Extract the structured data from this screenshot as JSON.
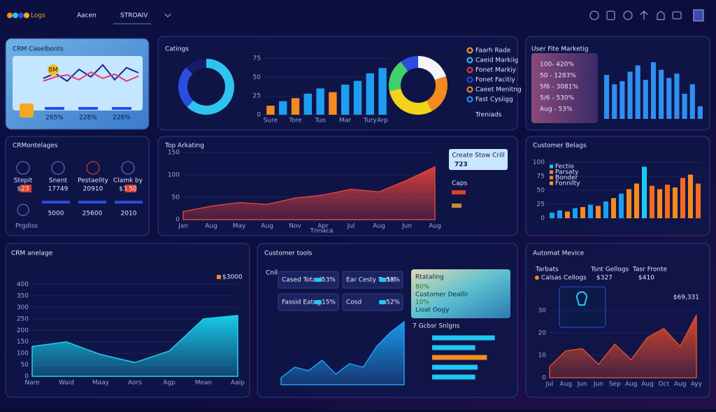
{
  "header": {
    "logo": "Logs",
    "nav": [
      "Aacen",
      "STROAIV"
    ]
  },
  "panels": {
    "crm_caselbonts": {
      "title": "CRM Caselbonts",
      "badge": "8M",
      "stats": [
        "265%",
        "228%",
        "226%"
      ],
      "chart": {
        "type": "line",
        "ylim": [
          0,
          100
        ],
        "series": [
          {
            "color": "#1a2a8a",
            "values": [
              40,
              58,
              30,
              72,
              45,
              88,
              35,
              78,
              60
            ]
          },
          {
            "color": "#e83a7a",
            "values": [
              30,
              45,
              52,
              35,
              62,
              40,
              55,
              30,
              48
            ]
          }
        ]
      }
    },
    "catings": {
      "title": "Catings",
      "donut": {
        "type": "donut",
        "values": [
          62,
          25,
          13
        ],
        "colors": [
          "#2ec4f0",
          "#2a4de0",
          "#1a1a6a"
        ]
      },
      "bars": {
        "type": "bar",
        "categories": [
          "Sure",
          null,
          "Tore",
          null,
          "Tuo",
          null,
          "Mar",
          null,
          "Tury",
          "Arp"
        ],
        "values": [
          12,
          18,
          22,
          28,
          35,
          30,
          40,
          45,
          55,
          62
        ],
        "colors": [
          "#f58a1f",
          "#1e9ef0",
          "#f58a1f",
          "#1e9ef0",
          "#1e9ef0",
          "#f58a1f",
          "#1e9ef0",
          "#1e9ef0",
          "#1e9ef0",
          "#1e9ef0"
        ],
        "ylim": [
          0,
          80
        ],
        "yticks": [
          0,
          25,
          50,
          75
        ]
      },
      "ring": {
        "type": "donut",
        "values": [
          20,
          22,
          30,
          18,
          10
        ],
        "colors": [
          "#f5f5f5",
          "#f58a1f",
          "#f2d21b",
          "#3fd06a",
          "#2a4de0"
        ]
      },
      "legend": [
        {
          "label": "Faarh Rade",
          "color": "#f5a623"
        },
        {
          "label": "Caeid Markiig",
          "color": "#2ec4f0"
        },
        {
          "label": "Fonet Markiy",
          "color": "#e83a3a"
        },
        {
          "label": "Fonet Facitiy",
          "color": "#2a4de0"
        },
        {
          "label": "Caeet Menitng",
          "color": "#f58a1f"
        },
        {
          "label": "Fast Cysiigg",
          "color": "#1e9ef0"
        }
      ],
      "footer": "Treniads"
    },
    "user_marketing": {
      "title": "User Fite Marketig",
      "rows": [
        "100- 420%",
        "50 - 1283%",
        "5f6 - 3081%",
        "5/6 - 530%",
        "Aug - 53%"
      ],
      "bars": {
        "type": "bar",
        "values": [
          70,
          55,
          60,
          75,
          85,
          62,
          90,
          78,
          65,
          72,
          40,
          55,
          20
        ],
        "color": "#2f8ff0",
        "ylim": [
          0,
          100
        ]
      }
    },
    "crm_montelages": {
      "title": "CRMontelages",
      "items": [
        {
          "label": "Stepit",
          "value": "$23"
        },
        {
          "label": "Snent",
          "value": "17749"
        },
        {
          "label": "Pestaelity",
          "value": "20910"
        },
        {
          "label": "Clamk by",
          "value": "$3.50"
        }
      ],
      "totals": [
        "5000",
        "25600",
        "2010"
      ],
      "footer": "Prgdiss"
    },
    "top_marketing": {
      "title": "Top Arkating",
      "chart": {
        "type": "area",
        "categories": [
          "Jan",
          "Aug",
          "May",
          "Aug",
          "Nov",
          "Apr",
          "Jul",
          "Aug",
          "Jun",
          "Aug"
        ],
        "values": [
          18,
          30,
          38,
          34,
          48,
          55,
          68,
          62,
          88,
          118
        ],
        "color": "#e0403a",
        "ylim": [
          0,
          150
        ],
        "yticks": [
          0,
          50,
          100,
          150
        ]
      },
      "card": {
        "label": "Create Stow Crill",
        "value": "723"
      },
      "side": "Caps",
      "footer": "Tnnaca"
    },
    "customer_belags": {
      "title": "Customer Belags",
      "legend": [
        {
          "label": "Fectio",
          "color": "#1ec8f5"
        },
        {
          "label": "Parsaty",
          "color": "#f58a1f"
        },
        {
          "label": "Bonder",
          "color": "#f58a1f"
        },
        {
          "label": "Fonnilty",
          "color": "#f5a623"
        }
      ],
      "chart": {
        "type": "bar",
        "values": [
          10,
          14,
          12,
          18,
          20,
          24,
          22,
          30,
          36,
          44,
          52,
          62,
          92,
          58,
          52,
          60,
          55,
          72,
          78,
          62
        ],
        "colors": [
          "#1e9ef0",
          "#1e9ef0",
          "#f58a1f",
          "#1e9ef0",
          "#f58a1f",
          "#1e9ef0",
          "#f58a1f",
          "#1e9ef0",
          "#f58a1f",
          "#1e9ef0",
          "#f58a1f",
          "#f58a1f",
          "#1ec8f5",
          "#f56a1f",
          "#f58a1f",
          "#f56a1f",
          "#f58a1f",
          "#f56a1f",
          "#f58a1f",
          "#f56a1f"
        ],
        "ylim": [
          0,
          100
        ],
        "yticks": [
          0,
          25,
          50,
          75,
          100
        ]
      }
    },
    "crm_anelage": {
      "title": "CRM anelage",
      "legend": "$3000",
      "chart": {
        "type": "area",
        "categories": [
          "Nare",
          "Waid",
          "Maay",
          "Aors",
          "Agp",
          "Mean",
          "Aaip"
        ],
        "values": [
          130,
          150,
          95,
          60,
          110,
          250,
          265
        ],
        "color": "#19d3f0",
        "ylim": [
          0,
          420
        ],
        "yticks": [
          0,
          50,
          100,
          150,
          200,
          250,
          300,
          350,
          400
        ]
      }
    },
    "customer_tools": {
      "title": "Customer tools",
      "label": "Cnil",
      "cards": [
        {
          "label": "Cased Totaok",
          "value": "53%"
        },
        {
          "label": "Ear Cesty Tertel",
          "value": "53%"
        },
        {
          "label": "Fassid Eatog",
          "value": "15%"
        },
        {
          "label": "Cosd",
          "value": "52%"
        }
      ],
      "promo": {
        "title": "Rtataling",
        "lines": [
          "80%",
          "Customer Deallir",
          "10%",
          "Lioat Oogy"
        ]
      },
      "bars_title": "7 Gcbsr Snlgns",
      "hbars": {
        "type": "hbar",
        "values": [
          80,
          55,
          70,
          58,
          55
        ],
        "colors": [
          "#1ec8f5",
          "#1ec8f5",
          "#f58a1f",
          "#1ec8f5",
          "#1ec8f5"
        ],
        "xlim": [
          0,
          100
        ]
      },
      "chart": {
        "type": "area",
        "values": [
          10,
          25,
          20,
          35,
          15,
          30,
          25,
          55,
          75,
          90
        ],
        "color": "#1e9ef0",
        "ylim": [
          0,
          100
        ]
      }
    },
    "automat_mevice": {
      "title": "Automat Mevice",
      "rows": [
        [
          "Tarbats",
          "Tsnt Gellogs",
          "Tasr Fronte"
        ],
        [
          "Calsas Cellogs",
          "$327",
          "$410"
        ]
      ],
      "value": "$69,331",
      "chart": {
        "type": "area",
        "categories": [
          "Jul",
          "Aug",
          "Jun",
          "Jun",
          "Sep",
          "Aug",
          "Aug",
          "Oct",
          "Aug",
          "Ayy"
        ],
        "values": [
          5,
          12,
          13,
          6,
          15,
          8,
          18,
          22,
          14,
          28
        ],
        "color": "#e04a2a",
        "ylim": [
          0,
          35
        ],
        "yticks": [
          0,
          10,
          20,
          30
        ]
      }
    }
  }
}
